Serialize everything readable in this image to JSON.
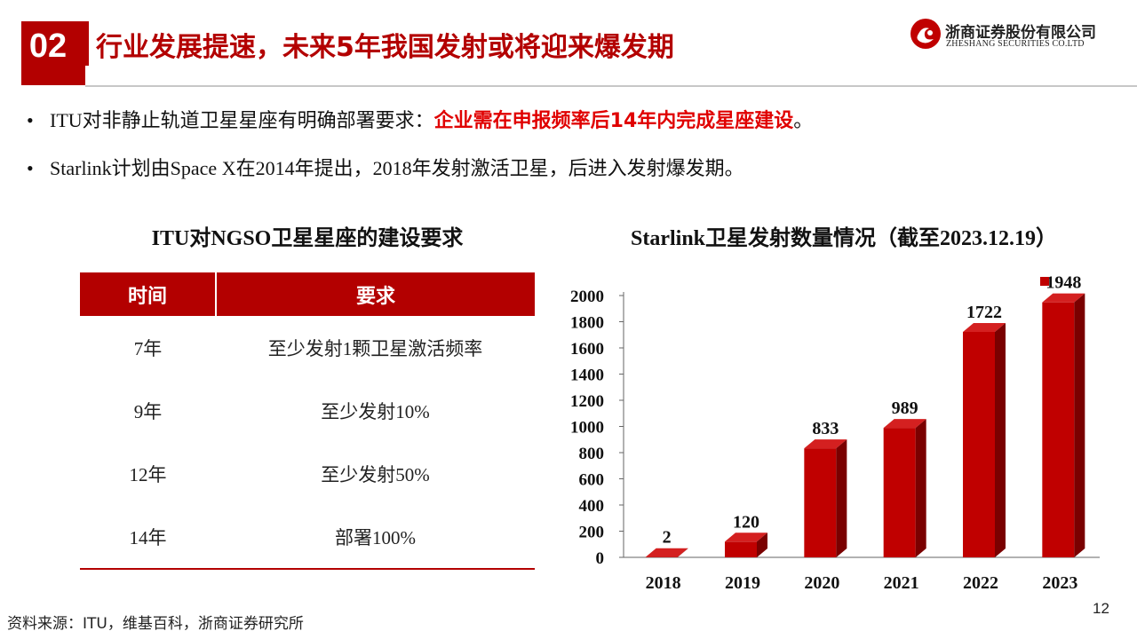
{
  "header": {
    "section_number": "02",
    "title": "行业发展提速，未来5年我国发射或将迎来爆发期",
    "logo_cn": "浙商证券股份有限公司",
    "logo_en": "ZHESHANG SECURITIES CO.LTD"
  },
  "bullets": [
    {
      "text": "ITU对非静止轨道卫星星座有明确部署要求：",
      "highlight": "企业需在申报频率后14年内完成星座建设",
      "end": "。"
    },
    {
      "text": "Starlink计划由Space X在2014年提出，2018年发射激活卫星，后进入发射爆发期。",
      "highlight": "",
      "end": ""
    }
  ],
  "table": {
    "title": "ITU对NGSO卫星星座的建设要求",
    "headers": [
      "时间",
      "要求"
    ],
    "rows": [
      [
        "7年",
        "至少发射1颗卫星激活频率"
      ],
      [
        "9年",
        "至少发射10%"
      ],
      [
        "12年",
        "至少发射50%"
      ],
      [
        "14年",
        "部署100%"
      ]
    ]
  },
  "chart_data": {
    "type": "bar",
    "title": "Starlink卫星发射数量情况（截至2023.12.19）",
    "categories": [
      "2018",
      "2019",
      "2020",
      "2021",
      "2022",
      "2023"
    ],
    "values": [
      2,
      120,
      833,
      989,
      1722,
      1948
    ],
    "ylim": [
      0,
      2000
    ],
    "yticks": [
      0,
      200,
      400,
      600,
      800,
      1000,
      1200,
      1400,
      1600,
      1800,
      2000
    ],
    "legend": "top-right",
    "bar_color": "#c00000",
    "xlabel": "",
    "ylabel": ""
  },
  "footer": {
    "source": "资料来源：ITU，维基百科，浙商证券研究所",
    "page_number": "12"
  }
}
